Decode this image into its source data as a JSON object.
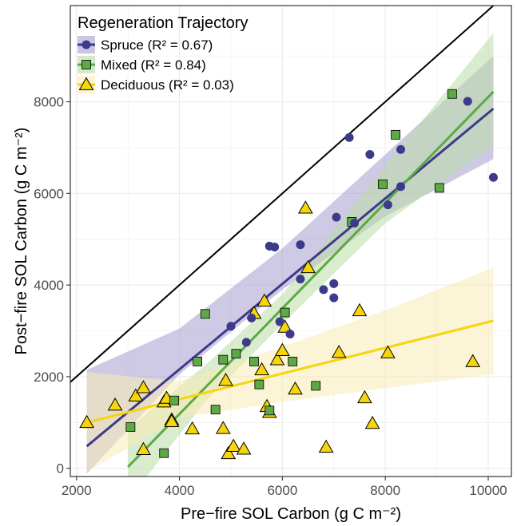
{
  "chart_data": {
    "type": "scatter",
    "xlabel": "Pre−fire SOL Carbon (g C m⁻²)",
    "ylabel": "Post−fire SOL Carbon (g C m⁻²)",
    "xlim": [
      1880,
      10450
    ],
    "ylim": [
      -180,
      10100
    ],
    "x_ticks": [
      2000,
      4000,
      6000,
      8000,
      10000
    ],
    "y_ticks": [
      0,
      2000,
      4000,
      6000,
      8000
    ],
    "grid": true,
    "legend": {
      "title": "Regeneration Trajectory",
      "placement": "top-left"
    },
    "reference_line": {
      "label": "1:1",
      "from": [
        1880,
        1880
      ],
      "to": [
        10450,
        10450
      ],
      "color": "#000000"
    },
    "series": [
      {
        "name": "Spruce",
        "r2_label": "(R² = 0.67)",
        "marker": "circle",
        "color": "#3d3a8c",
        "band_color": "#a59fcf",
        "fit": {
          "x": [
            2200,
            10100
          ],
          "y": [
            480,
            7850
          ]
        },
        "band_lower": [
          {
            "x": 2200,
            "y": -120
          },
          {
            "x": 4000,
            "y": 2050
          },
          {
            "x": 6000,
            "y": 3900
          },
          {
            "x": 8000,
            "y": 5500
          },
          {
            "x": 10100,
            "y": 6750
          }
        ],
        "band_upper": [
          {
            "x": 2200,
            "y": 2150
          },
          {
            "x": 4000,
            "y": 3050
          },
          {
            "x": 6000,
            "y": 4800
          },
          {
            "x": 8000,
            "y": 6850
          },
          {
            "x": 10100,
            "y": 9000
          }
        ],
        "points": [
          {
            "x": 5000,
            "y": 3100
          },
          {
            "x": 5300,
            "y": 2750
          },
          {
            "x": 5400,
            "y": 3280
          },
          {
            "x": 5750,
            "y": 4850
          },
          {
            "x": 5850,
            "y": 4830
          },
          {
            "x": 5950,
            "y": 3200
          },
          {
            "x": 6150,
            "y": 2930
          },
          {
            "x": 6350,
            "y": 4880
          },
          {
            "x": 6350,
            "y": 4130
          },
          {
            "x": 6800,
            "y": 3900
          },
          {
            "x": 7000,
            "y": 4030
          },
          {
            "x": 7000,
            "y": 3720
          },
          {
            "x": 7050,
            "y": 5480
          },
          {
            "x": 7400,
            "y": 5350
          },
          {
            "x": 7300,
            "y": 7220
          },
          {
            "x": 7700,
            "y": 6850
          },
          {
            "x": 8050,
            "y": 5750
          },
          {
            "x": 8300,
            "y": 6150
          },
          {
            "x": 8300,
            "y": 6960
          },
          {
            "x": 9600,
            "y": 8010
          },
          {
            "x": 10100,
            "y": 6350
          }
        ]
      },
      {
        "name": "Mixed",
        "r2_label": "(R² = 0.84)",
        "marker": "square",
        "color": "#5ca945",
        "band_color": "#b9dca6",
        "fit": {
          "x": [
            3000,
            10100
          ],
          "y": [
            30,
            8220
          ]
        },
        "band_lower": [
          {
            "x": 3000,
            "y": -700
          },
          {
            "x": 4500,
            "y": 1450
          },
          {
            "x": 6000,
            "y": 3150
          },
          {
            "x": 8000,
            "y": 5350
          },
          {
            "x": 10100,
            "y": 7050
          }
        ],
        "band_upper": [
          {
            "x": 3000,
            "y": 850
          },
          {
            "x": 4500,
            "y": 2250
          },
          {
            "x": 6000,
            "y": 3800
          },
          {
            "x": 8000,
            "y": 6600
          },
          {
            "x": 10100,
            "y": 9500
          }
        ],
        "points": [
          {
            "x": 3050,
            "y": 900
          },
          {
            "x": 3700,
            "y": 330
          },
          {
            "x": 3900,
            "y": 1480
          },
          {
            "x": 4350,
            "y": 2330
          },
          {
            "x": 4500,
            "y": 3370
          },
          {
            "x": 4700,
            "y": 1280
          },
          {
            "x": 4850,
            "y": 2370
          },
          {
            "x": 5100,
            "y": 2500
          },
          {
            "x": 5450,
            "y": 2330
          },
          {
            "x": 5550,
            "y": 1830
          },
          {
            "x": 5750,
            "y": 1260
          },
          {
            "x": 6050,
            "y": 3400
          },
          {
            "x": 6200,
            "y": 2330
          },
          {
            "x": 6650,
            "y": 1800
          },
          {
            "x": 7350,
            "y": 5380
          },
          {
            "x": 7950,
            "y": 6200
          },
          {
            "x": 8200,
            "y": 7280
          },
          {
            "x": 9050,
            "y": 6120
          },
          {
            "x": 9300,
            "y": 8170
          }
        ]
      },
      {
        "name": "Deciduous",
        "r2_label": "(R² = 0.03)",
        "marker": "triangle",
        "color": "#f6d50a",
        "band_color": "#f9ebb4",
        "fit": {
          "x": [
            2200,
            10100
          ],
          "y": [
            1000,
            3220
          ]
        },
        "band_lower": [
          {
            "x": 2200,
            "y": -80
          },
          {
            "x": 4000,
            "y": 1100
          },
          {
            "x": 6000,
            "y": 1450
          },
          {
            "x": 8000,
            "y": 1750
          },
          {
            "x": 10100,
            "y": 2050
          }
        ],
        "band_upper": [
          {
            "x": 2200,
            "y": 2100
          },
          {
            "x": 4000,
            "y": 1900
          },
          {
            "x": 6000,
            "y": 2650
          },
          {
            "x": 8000,
            "y": 3450
          },
          {
            "x": 10100,
            "y": 4380
          }
        ],
        "points": [
          {
            "x": 2200,
            "y": 1000
          },
          {
            "x": 2750,
            "y": 1380
          },
          {
            "x": 3150,
            "y": 1580
          },
          {
            "x": 3300,
            "y": 1760
          },
          {
            "x": 3300,
            "y": 410
          },
          {
            "x": 3700,
            "y": 1450
          },
          {
            "x": 3750,
            "y": 1530
          },
          {
            "x": 3850,
            "y": 1060
          },
          {
            "x": 3850,
            "y": 1020
          },
          {
            "x": 4250,
            "y": 860
          },
          {
            "x": 4900,
            "y": 1920
          },
          {
            "x": 4850,
            "y": 870
          },
          {
            "x": 4950,
            "y": 320
          },
          {
            "x": 5050,
            "y": 480
          },
          {
            "x": 5250,
            "y": 420
          },
          {
            "x": 5450,
            "y": 3380
          },
          {
            "x": 5600,
            "y": 2150
          },
          {
            "x": 5650,
            "y": 3650
          },
          {
            "x": 5700,
            "y": 1350
          },
          {
            "x": 5750,
            "y": 1220
          },
          {
            "x": 5900,
            "y": 2370
          },
          {
            "x": 6000,
            "y": 2570
          },
          {
            "x": 6050,
            "y": 3080
          },
          {
            "x": 6250,
            "y": 1730
          },
          {
            "x": 6450,
            "y": 5680
          },
          {
            "x": 6500,
            "y": 4380
          },
          {
            "x": 6850,
            "y": 460
          },
          {
            "x": 7100,
            "y": 2530
          },
          {
            "x": 7500,
            "y": 3440
          },
          {
            "x": 7600,
            "y": 1540
          },
          {
            "x": 7750,
            "y": 980
          },
          {
            "x": 8050,
            "y": 2520
          },
          {
            "x": 9700,
            "y": 2330
          }
        ]
      }
    ]
  }
}
